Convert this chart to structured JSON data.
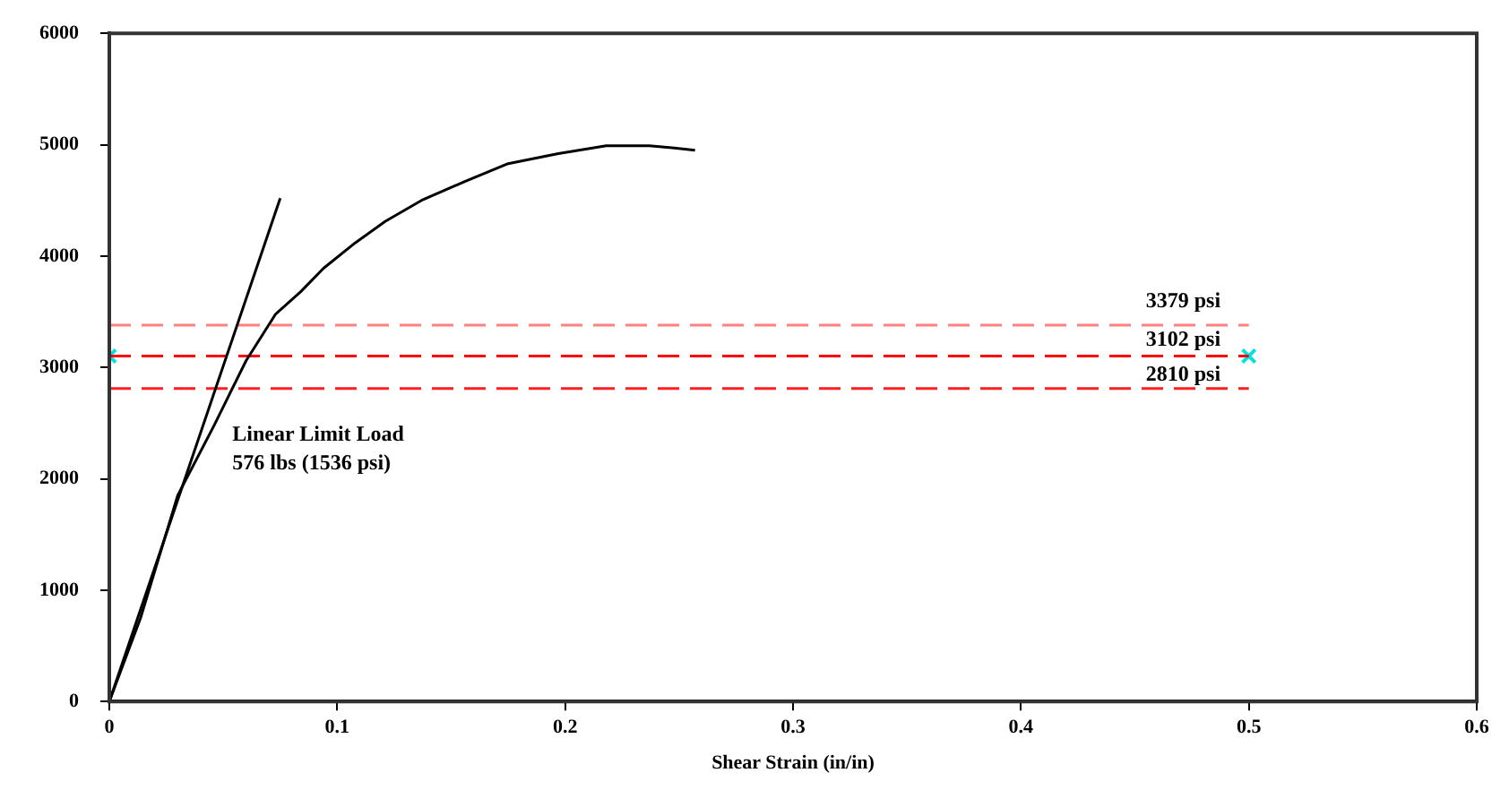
{
  "chart_data": {
    "type": "line",
    "xlabel": "Shear Strain (in/in)",
    "xlim": [
      0,
      0.6
    ],
    "xticks": [
      0,
      0.1,
      0.2,
      0.3,
      0.4,
      0.5,
      0.6
    ],
    "ylim": [
      0,
      6000
    ],
    "yticks": [
      0,
      1000,
      2000,
      3000,
      4000,
      5000,
      6000
    ],
    "grid": false,
    "legend": false,
    "marker": "none",
    "line_style": "solid",
    "series": [
      {
        "color": "#000000",
        "x": [
          0,
          0.075
        ],
        "values": [
          0,
          4520
        ]
      },
      {
        "color": "#000000",
        "x": [
          0,
          0.0137,
          0.03,
          0.046,
          0.06,
          0.073,
          0.084,
          0.094,
          0.108,
          0.121,
          0.137,
          0.156,
          0.175,
          0.197,
          0.218,
          0.237,
          0.248,
          0.257
        ],
        "values": [
          0,
          750,
          1850,
          2480,
          3060,
          3480,
          3680,
          3890,
          4120,
          4310,
          4500,
          4670,
          4830,
          4920,
          4990,
          4990,
          4970,
          4950
        ]
      },
      {
        "color": "#ff8080",
        "line_style": "dashed",
        "x": [
          0,
          0.5
        ],
        "values": [
          3379,
          3379
        ]
      },
      {
        "color": "#ff0000",
        "line_style": "dashed",
        "x": [
          0,
          0.5
        ],
        "values": [
          3102,
          3102
        ]
      },
      {
        "color": "#ff2020",
        "line_style": "dashed",
        "x": [
          0,
          0.5
        ],
        "values": [
          2810,
          2810
        ]
      },
      {
        "type": "scatter",
        "marker": "cross",
        "color": "#00e0e0",
        "x": [
          0,
          0.5
        ],
        "values": [
          3102,
          3102
        ]
      }
    ],
    "annotations": [
      "Linear Limit Load\n576 lbs (1536 psi)",
      "3379 psi",
      "3102 psi",
      "2810 psi"
    ]
  }
}
